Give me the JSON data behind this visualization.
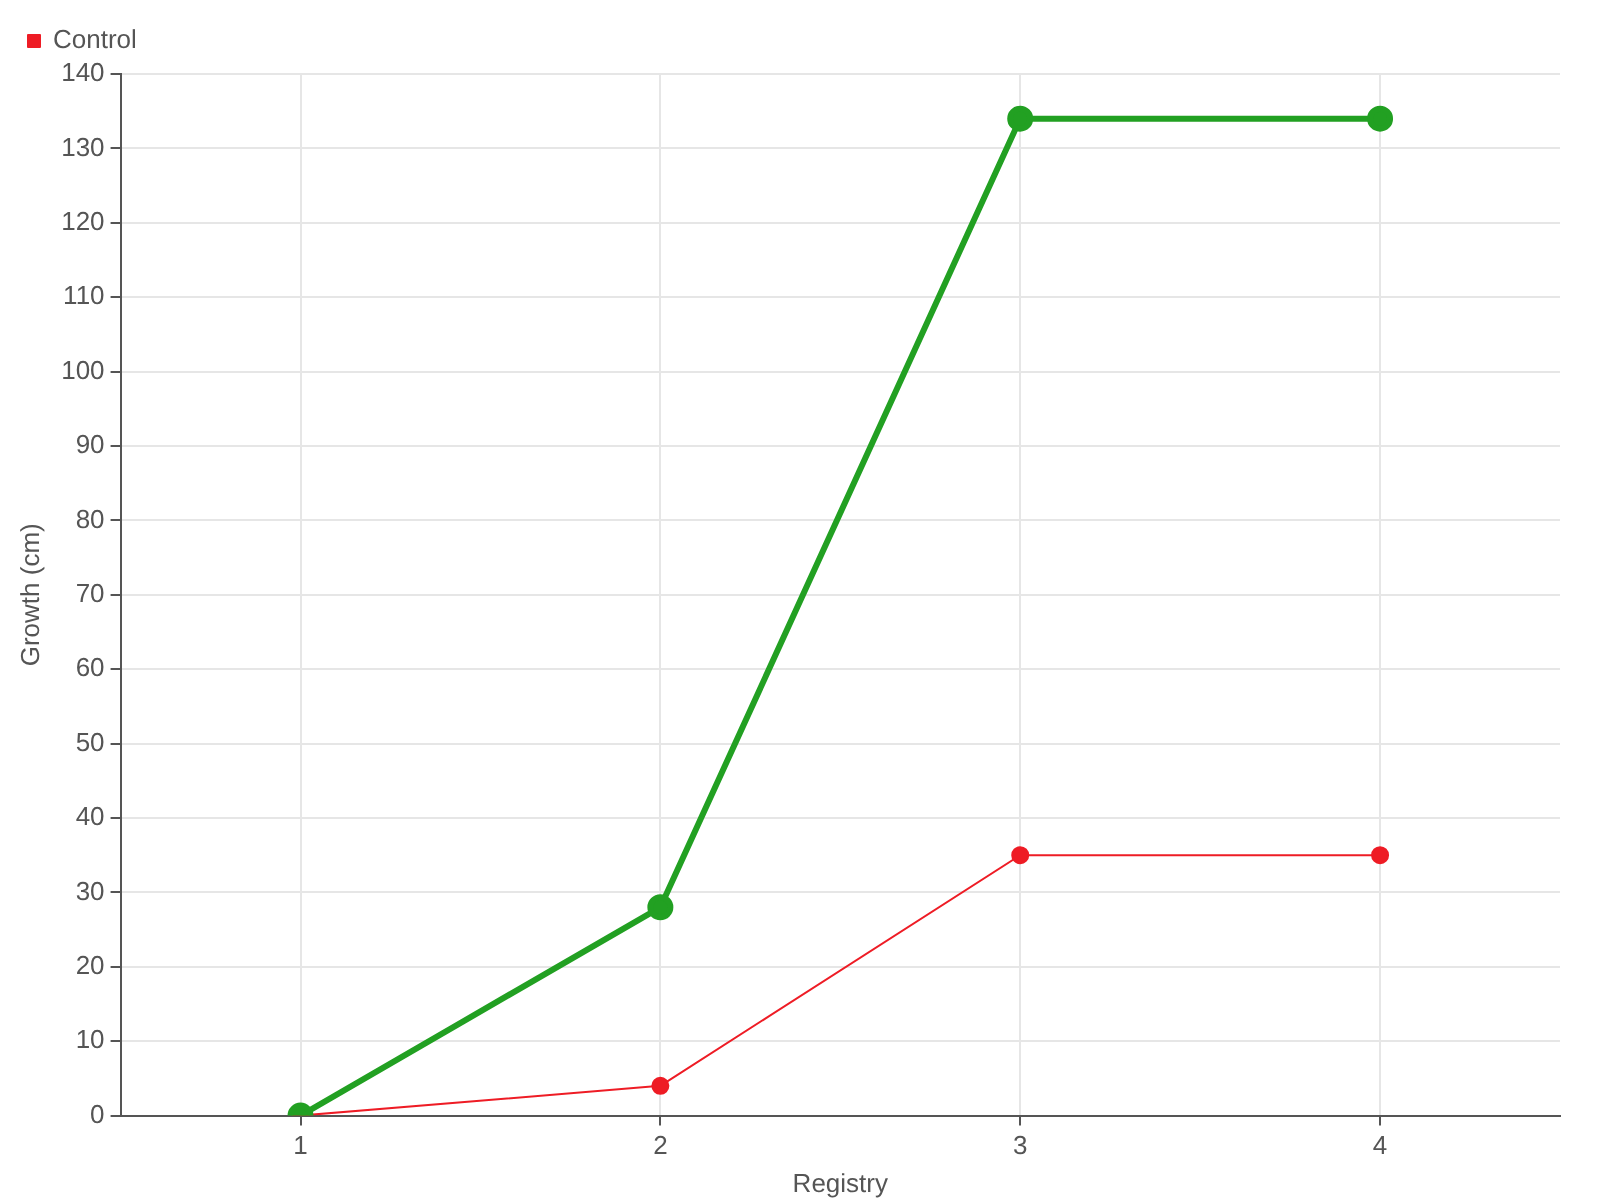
{
  "chart_data": {
    "type": "line",
    "xlabel": "Registry",
    "ylabel": "Growth (cm)",
    "x": [
      1,
      2,
      3,
      4
    ],
    "xlim": [
      0.5,
      4.5
    ],
    "xticks": [
      1,
      2,
      3,
      4
    ],
    "ylim": [
      0,
      140
    ],
    "yticks": [
      0,
      10,
      20,
      30,
      40,
      50,
      60,
      70,
      80,
      90,
      100,
      110,
      120,
      130,
      140
    ],
    "series": [
      {
        "color": "#22a022",
        "values": [
          0,
          28,
          134,
          134
        ]
      },
      {
        "name": "Control",
        "color": "#ee1c25",
        "values": [
          0,
          4,
          35,
          35
        ]
      }
    ],
    "grid": true,
    "legend": "top left",
    "marker": "circle",
    "line_style": "solid"
  }
}
